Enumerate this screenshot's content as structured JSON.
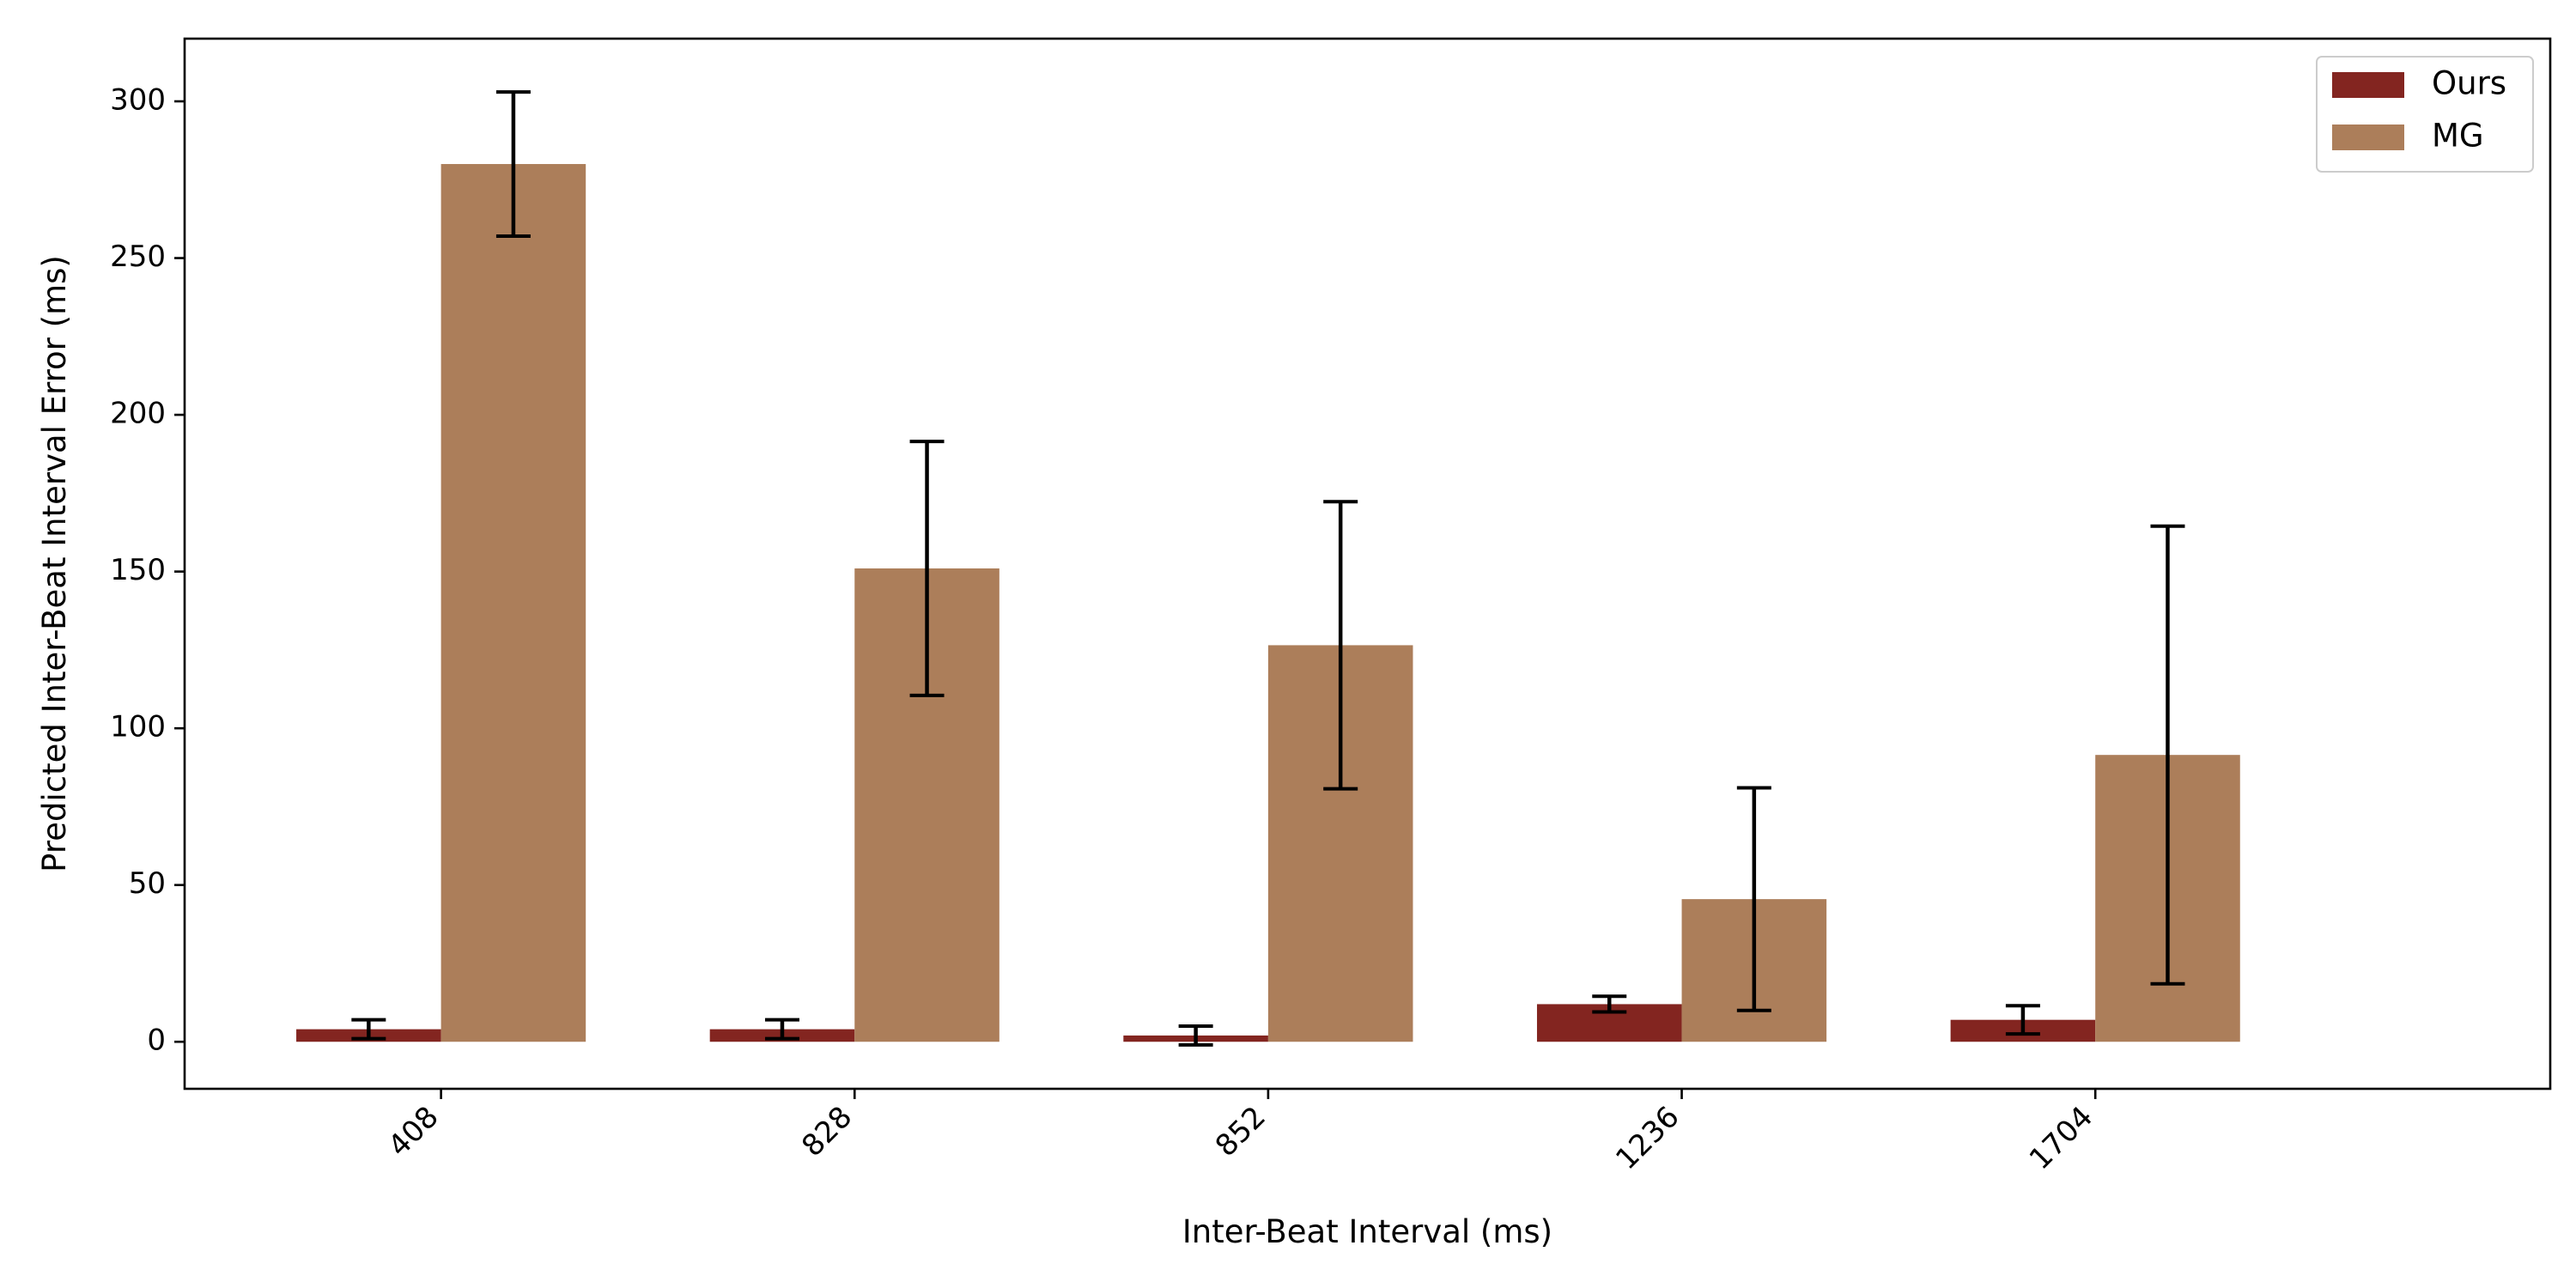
{
  "chart_data": {
    "type": "bar",
    "title": "",
    "xlabel": "Inter-Beat Interval (ms)",
    "ylabel": "Predicted Inter-Beat Interval Error (ms)",
    "categories": [
      "408",
      "828",
      "852",
      "1236",
      "1704"
    ],
    "ylim": [
      -15,
      320
    ],
    "yticks": [
      0,
      50,
      100,
      150,
      200,
      250,
      300
    ],
    "grid": false,
    "legend_position": "top-right",
    "series": [
      {
        "name": "Ours",
        "color": "#832520",
        "values": [
          4,
          4,
          2,
          12,
          7
        ],
        "errors": [
          3,
          3,
          3,
          2.5,
          4.5
        ]
      },
      {
        "name": "MG",
        "color": "#AC7E5A",
        "values": [
          280,
          151,
          126.5,
          45.5,
          91.5
        ],
        "errors": [
          23,
          40.5,
          45.8,
          35.5,
          73
        ]
      }
    ]
  }
}
